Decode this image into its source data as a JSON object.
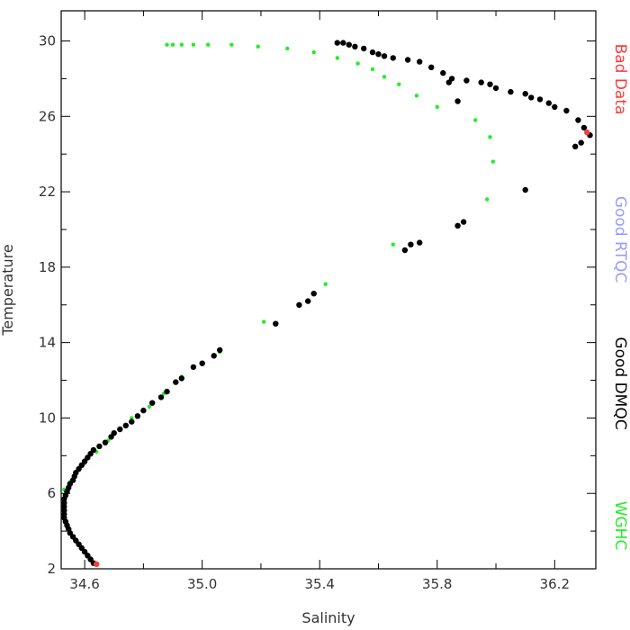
{
  "chart_data": {
    "type": "scatter",
    "title": "",
    "xlabel": "Salinity",
    "ylabel": "Temperature",
    "xlim": [
      34.52,
      36.34
    ],
    "ylim": [
      2,
      31.6
    ],
    "x_ticks": [
      "34.6",
      "35.0",
      "35.4",
      "35.8",
      "36.2"
    ],
    "x_tick_values": [
      34.6,
      35.0,
      35.4,
      35.8,
      36.2
    ],
    "y_ticks": [
      "2",
      "6",
      "10",
      "14",
      "18",
      "22",
      "26",
      "30"
    ],
    "y_tick_values": [
      2,
      6,
      10,
      14,
      18,
      22,
      26,
      30
    ],
    "grid": false,
    "legend_placement": "right, vertical",
    "series": [
      {
        "name": "Bad Data",
        "color": "#ff3b3b",
        "points": [
          [
            34.64,
            2.25
          ],
          [
            36.31,
            25.15
          ]
        ]
      },
      {
        "name": "Good RTQC",
        "color": "#9a9aff",
        "points": []
      },
      {
        "name": "Good DMQC",
        "color": "#000000",
        "points": [
          [
            34.63,
            2.3
          ],
          [
            34.62,
            2.5
          ],
          [
            34.61,
            2.7
          ],
          [
            34.6,
            2.9
          ],
          [
            34.59,
            3.1
          ],
          [
            34.58,
            3.3
          ],
          [
            34.57,
            3.5
          ],
          [
            34.56,
            3.7
          ],
          [
            34.55,
            3.9
          ],
          [
            34.545,
            4.1
          ],
          [
            34.54,
            4.3
          ],
          [
            34.535,
            4.5
          ],
          [
            34.53,
            4.7
          ],
          [
            34.53,
            4.9
          ],
          [
            34.53,
            5.1
          ],
          [
            34.53,
            5.3
          ],
          [
            34.53,
            5.5
          ],
          [
            34.53,
            5.7
          ],
          [
            34.535,
            5.9
          ],
          [
            34.54,
            6.1
          ],
          [
            34.545,
            6.3
          ],
          [
            34.55,
            6.5
          ],
          [
            34.56,
            6.7
          ],
          [
            34.565,
            6.9
          ],
          [
            34.57,
            7.1
          ],
          [
            34.58,
            7.3
          ],
          [
            34.59,
            7.5
          ],
          [
            34.6,
            7.7
          ],
          [
            34.61,
            7.9
          ],
          [
            34.62,
            8.1
          ],
          [
            34.63,
            8.3
          ],
          [
            34.65,
            8.5
          ],
          [
            34.67,
            8.7
          ],
          [
            34.69,
            9.0
          ],
          [
            34.7,
            9.2
          ],
          [
            34.72,
            9.4
          ],
          [
            34.74,
            9.6
          ],
          [
            34.76,
            9.8
          ],
          [
            34.78,
            10.1
          ],
          [
            34.8,
            10.4
          ],
          [
            34.83,
            10.8
          ],
          [
            34.86,
            11.1
          ],
          [
            34.88,
            11.4
          ],
          [
            34.91,
            11.9
          ],
          [
            34.93,
            12.1
          ],
          [
            34.97,
            12.7
          ],
          [
            35.0,
            12.9
          ],
          [
            35.04,
            13.3
          ],
          [
            35.06,
            13.6
          ],
          [
            35.25,
            15.0
          ],
          [
            35.33,
            16.0
          ],
          [
            35.36,
            16.2
          ],
          [
            35.38,
            16.6
          ],
          [
            35.69,
            18.9
          ],
          [
            35.71,
            19.2
          ],
          [
            35.74,
            19.3
          ],
          [
            35.87,
            20.2
          ],
          [
            35.89,
            20.4
          ],
          [
            36.1,
            22.1
          ],
          [
            35.46,
            29.9
          ],
          [
            35.48,
            29.9
          ],
          [
            35.5,
            29.8
          ],
          [
            35.52,
            29.7
          ],
          [
            35.55,
            29.6
          ],
          [
            35.58,
            29.4
          ],
          [
            35.6,
            29.3
          ],
          [
            35.62,
            29.2
          ],
          [
            35.65,
            29.1
          ],
          [
            35.7,
            29.0
          ],
          [
            35.74,
            28.9
          ],
          [
            35.78,
            28.6
          ],
          [
            35.82,
            28.3
          ],
          [
            35.85,
            28.0
          ],
          [
            35.9,
            27.9
          ],
          [
            35.95,
            27.8
          ],
          [
            35.98,
            27.7
          ],
          [
            36.0,
            27.5
          ],
          [
            36.05,
            27.3
          ],
          [
            36.1,
            27.2
          ],
          [
            36.12,
            27.0
          ],
          [
            36.15,
            26.9
          ],
          [
            36.18,
            26.7
          ],
          [
            36.2,
            26.5
          ],
          [
            36.24,
            26.3
          ],
          [
            36.28,
            25.8
          ],
          [
            36.3,
            25.4
          ],
          [
            36.32,
            25.0
          ],
          [
            36.29,
            24.6
          ],
          [
            36.27,
            24.4
          ],
          [
            35.87,
            26.8
          ],
          [
            35.84,
            27.8
          ]
        ]
      },
      {
        "name": "WGHC",
        "color": "#22ee22",
        "points": [
          [
            34.88,
            29.8
          ],
          [
            34.9,
            29.8
          ],
          [
            34.93,
            29.8
          ],
          [
            34.97,
            29.8
          ],
          [
            35.02,
            29.8
          ],
          [
            35.1,
            29.8
          ],
          [
            35.19,
            29.7
          ],
          [
            35.29,
            29.6
          ],
          [
            35.38,
            29.4
          ],
          [
            35.46,
            29.1
          ],
          [
            35.53,
            28.8
          ],
          [
            35.58,
            28.5
          ],
          [
            35.62,
            28.1
          ],
          [
            35.67,
            27.7
          ],
          [
            35.73,
            27.1
          ],
          [
            35.8,
            26.5
          ],
          [
            35.93,
            25.8
          ],
          [
            35.98,
            24.9
          ],
          [
            35.99,
            23.6
          ],
          [
            35.97,
            21.6
          ],
          [
            35.65,
            19.2
          ],
          [
            35.42,
            17.1
          ],
          [
            35.21,
            15.1
          ],
          [
            35.06,
            13.5
          ],
          [
            34.93,
            12.2
          ],
          [
            34.87,
            11.3
          ],
          [
            34.82,
            10.6
          ],
          [
            34.76,
            10.0
          ],
          [
            34.72,
            9.4
          ],
          [
            34.68,
            8.8
          ],
          [
            34.64,
            8.2
          ],
          [
            34.6,
            7.6
          ],
          [
            34.57,
            7.1
          ],
          [
            34.55,
            6.6
          ],
          [
            34.53,
            6.2
          ]
        ]
      }
    ]
  }
}
